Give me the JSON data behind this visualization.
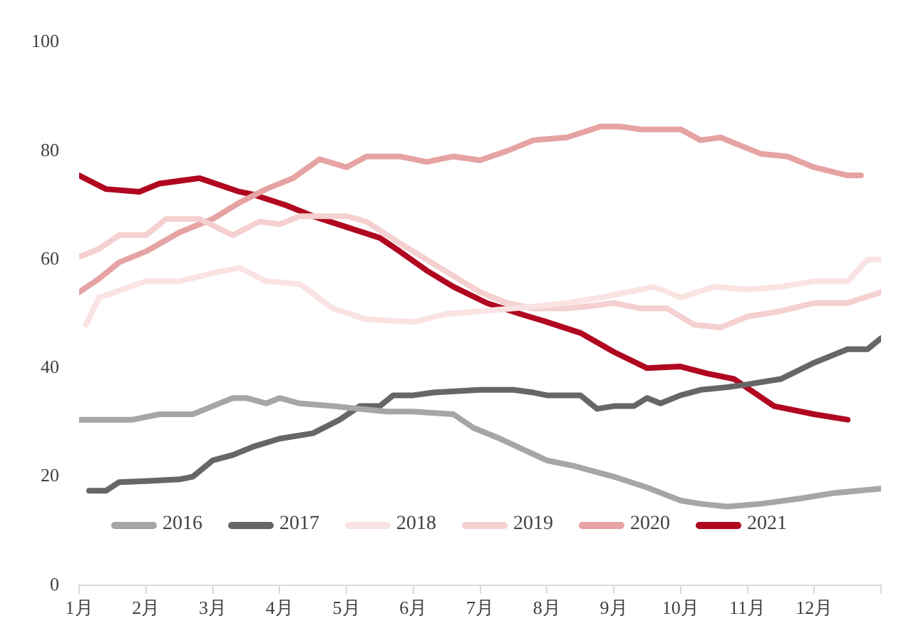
{
  "chart_data": {
    "type": "line",
    "xlim": [
      1,
      13
    ],
    "xticks": [
      {
        "value": 1,
        "label": "1月"
      },
      {
        "value": 2,
        "label": "2月"
      },
      {
        "value": 3,
        "label": "3月"
      },
      {
        "value": 4,
        "label": "4月"
      },
      {
        "value": 5,
        "label": "5月"
      },
      {
        "value": 6,
        "label": "6月"
      },
      {
        "value": 7,
        "label": "7月"
      },
      {
        "value": 8,
        "label": "8月"
      },
      {
        "value": 9,
        "label": "9月"
      },
      {
        "value": 10,
        "label": "10月"
      },
      {
        "value": 11,
        "label": "11月"
      },
      {
        "value": 12,
        "label": "12月"
      },
      {
        "value": 13,
        "label": null
      }
    ],
    "ylim": [
      0,
      100
    ],
    "yticks": [
      0,
      20,
      40,
      60,
      80,
      100
    ],
    "grid": false,
    "legend": "bottom",
    "marker": "none",
    "line_style": "solid",
    "series": [
      {
        "name": "2016",
        "color": "#a6a6a6",
        "x": [
          1,
          1.8,
          2.2,
          2.7,
          3.0,
          3.3,
          3.5,
          3.8,
          4.0,
          4.3,
          4.8,
          5.2,
          5.6,
          6.0,
          6.6,
          6.9,
          7.3,
          8.0,
          8.4,
          9.0,
          9.5,
          10.0,
          10.3,
          10.7,
          11.2,
          11.8,
          12.3,
          13
        ],
        "values": [
          30.5,
          30.5,
          31.5,
          31.5,
          33,
          34.5,
          34.5,
          33.5,
          34.5,
          33.5,
          33,
          32.5,
          32,
          32,
          31.5,
          29,
          27,
          23,
          22,
          20,
          18,
          15.6,
          15,
          14.5,
          15,
          16,
          17,
          17.8
        ]
      },
      {
        "name": "2017",
        "color": "#666666",
        "x": [
          1.15,
          1.4,
          1.6,
          2.0,
          2.5,
          2.7,
          3.0,
          3.3,
          3.6,
          4.0,
          4.5,
          4.9,
          5.2,
          5.5,
          5.7,
          6.0,
          6.3,
          7.0,
          7.5,
          7.8,
          8.0,
          8.5,
          8.75,
          9.0,
          9.3,
          9.5,
          9.7,
          10.0,
          10.3,
          10.7,
          11.0,
          11.5,
          12.0,
          12.5,
          12.8,
          13
        ],
        "values": [
          17.4,
          17.4,
          19,
          19.2,
          19.5,
          20,
          23,
          24,
          25.5,
          27,
          28,
          30.5,
          33,
          33,
          35,
          35,
          35.5,
          36,
          36,
          35.5,
          35,
          35,
          32.5,
          33,
          33,
          34.5,
          33.5,
          35,
          36,
          36.5,
          37,
          38,
          41,
          43.5,
          43.5,
          45.5
        ]
      },
      {
        "name": "2018",
        "color": "#fae3e3",
        "x": [
          1.1,
          1.3,
          2.0,
          2.5,
          3.0,
          3.4,
          3.8,
          4.3,
          4.8,
          5.3,
          6.0,
          6.5,
          7.0,
          7.5,
          8.3,
          8.8,
          9.2,
          9.6,
          10.0,
          10.5,
          11.0,
          11.5,
          12.0,
          12.5,
          12.8,
          13
        ],
        "values": [
          48,
          53,
          56,
          56,
          57.5,
          58.5,
          56,
          55.5,
          51,
          49,
          48.5,
          50,
          50.5,
          51,
          52,
          53,
          54,
          55,
          53,
          55,
          54.5,
          55,
          56,
          56,
          60,
          60
        ]
      },
      {
        "name": "2019",
        "color": "#f5d0d0",
        "x": [
          1.0,
          1.3,
          1.6,
          2.0,
          2.3,
          2.8,
          3.3,
          3.7,
          4.0,
          4.3,
          5.0,
          5.3,
          5.8,
          6.2,
          6.6,
          7.0,
          7.4,
          7.8,
          8.3,
          8.7,
          9.0,
          9.4,
          9.8,
          10.2,
          10.6,
          11.0,
          11.5,
          12.0,
          12.5,
          13
        ],
        "values": [
          60.5,
          62,
          64.5,
          64.5,
          67.5,
          67.5,
          64.5,
          67,
          66.5,
          68,
          68,
          67,
          63,
          60,
          57,
          54,
          52,
          51,
          51,
          51.5,
          52,
          51,
          51,
          48,
          47.5,
          49.5,
          50.5,
          52,
          52,
          54
        ]
      },
      {
        "name": "2020",
        "color": "#e6a3a3",
        "x": [
          1.0,
          1.3,
          1.6,
          2.0,
          2.5,
          3.0,
          3.4,
          3.8,
          4.2,
          4.6,
          5.0,
          5.3,
          5.8,
          6.2,
          6.6,
          7.0,
          7.4,
          7.8,
          8.3,
          8.8,
          9.1,
          9.4,
          10.0,
          10.3,
          10.6,
          11.2,
          11.6,
          12.0,
          12.5,
          12.7
        ],
        "values": [
          54,
          56.5,
          59.5,
          61.5,
          65,
          67.5,
          70.5,
          73,
          75,
          78.5,
          77,
          79,
          79,
          78,
          79,
          78.3,
          80,
          82,
          82.5,
          84.5,
          84.5,
          84,
          84,
          82,
          82.5,
          79.5,
          79,
          77,
          75.5,
          75.5
        ]
      },
      {
        "name": "2021",
        "color": "#b0061f",
        "x": [
          1.0,
          1.4,
          1.9,
          2.2,
          2.8,
          3.4,
          3.6,
          4.1,
          4.5,
          5.0,
          5.5,
          5.8,
          6.2,
          6.6,
          7.1,
          7.6,
          8.0,
          8.5,
          9.0,
          9.5,
          10.0,
          10.4,
          10.8,
          11.4,
          12.0,
          12.5
        ],
        "values": [
          75.5,
          73,
          72.5,
          74,
          75,
          72.5,
          72,
          70,
          68,
          66,
          64,
          61.5,
          58,
          55,
          52,
          50,
          48.5,
          46.5,
          43,
          40,
          40.3,
          39,
          38,
          33,
          31.5,
          30.5
        ]
      }
    ]
  }
}
